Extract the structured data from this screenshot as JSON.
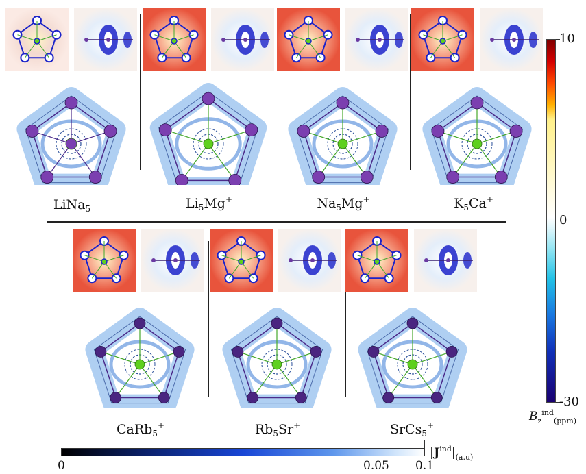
{
  "colors": {
    "atom_outer": "#7b3fb0",
    "atom_center": "#5fd01e",
    "bond_outer": "#4b2a8a",
    "bond_center": "#45a82a",
    "current_tube": "#6ea8e8",
    "map_warm": "#e8543c",
    "map_cold": "#1b23c9"
  },
  "molecules": [
    {
      "formula": "LiNa",
      "sub": "5",
      "sup": "",
      "has_center_atom": true,
      "center_color": "#8a3fb0"
    },
    {
      "formula": "Li",
      "sub": "5",
      "rest": "Mg",
      "sup": "+",
      "has_center_atom": true
    },
    {
      "formula": "Na",
      "sub": "5",
      "rest": "Mg",
      "sup": "+",
      "has_center_atom": true
    },
    {
      "formula": "K",
      "sub": "5",
      "rest": "Ca",
      "sup": "+",
      "has_center_atom": true
    },
    {
      "formula": "CaRb",
      "sub": "5",
      "rest": "",
      "sup": "+",
      "has_center_atom": true
    },
    {
      "formula": "Rb",
      "sub": "5",
      "rest": "Sr",
      "sup": "+",
      "has_center_atom": true
    },
    {
      "formula": "SrCs",
      "sub": "5",
      "rest": "",
      "sup": "+",
      "has_center_atom": true
    }
  ],
  "labels": {
    "m0": {
      "a": "LiNa",
      "b": "5",
      "c": "",
      "d": ""
    },
    "m1": {
      "a": "Li",
      "b": "5",
      "c": "Mg",
      "d": "+"
    },
    "m2": {
      "a": "Na",
      "b": "5",
      "c": "Mg",
      "d": "+"
    },
    "m3": {
      "a": "K",
      "b": "5",
      "c": "Ca",
      "d": "+"
    },
    "m4": {
      "a": "CaRb",
      "b": "5",
      "c": "",
      "d": "+"
    },
    "m5": {
      "a": "Rb",
      "b": "5",
      "c": "Sr",
      "d": "+"
    },
    "m6": {
      "a": "SrCs",
      "b": "5",
      "c": "",
      "d": "+"
    }
  },
  "vcolorbar": {
    "tick_top": "10",
    "tick_mid": "0",
    "tick_bottom": "-30",
    "title_main": "B",
    "title_sub": "z",
    "title_sup": "ind",
    "title_unit": "(ppm)"
  },
  "hcolorbar": {
    "tick_0": "0",
    "tick_1": "0.05",
    "tick_2": "0.1",
    "title_main": "|J",
    "title_sup": "ind",
    "title_close": "|",
    "title_unit": "(a.u)"
  }
}
